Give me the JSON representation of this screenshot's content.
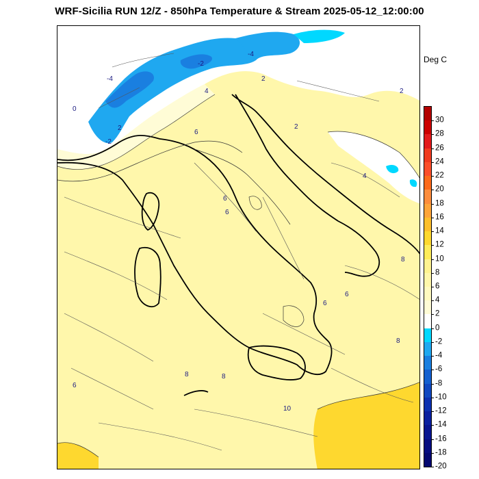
{
  "title": "WRF-Sicilia RUN 12/Z - 850hPa Temperature & Stream 2025-05-12_12:00:00",
  "unit_label": "Deg C",
  "colorbar": {
    "min": -20,
    "max": 32,
    "tick_labels": [
      "30",
      "28",
      "26",
      "24",
      "22",
      "20",
      "18",
      "16",
      "14",
      "12",
      "10",
      "8",
      "6",
      "4",
      "2",
      "0",
      "-2",
      "-4",
      "-6",
      "-8",
      "-10",
      "-12",
      "-14",
      "-16",
      "-18",
      "-20"
    ],
    "bins": [
      {
        "from": 30,
        "to": 32,
        "color": "#b30000"
      },
      {
        "from": 28,
        "to": 30,
        "color": "#cc0000"
      },
      {
        "from": 26,
        "to": 28,
        "color": "#e31a1c"
      },
      {
        "from": 24,
        "to": 26,
        "color": "#f03b20"
      },
      {
        "from": 22,
        "to": 24,
        "color": "#fc4e2a"
      },
      {
        "from": 20,
        "to": 22,
        "color": "#fd6a1a"
      },
      {
        "from": 18,
        "to": 20,
        "color": "#fd8d3c"
      },
      {
        "from": 16,
        "to": 18,
        "color": "#fea53a"
      },
      {
        "from": 14,
        "to": 16,
        "color": "#fdbf2d"
      },
      {
        "from": 12,
        "to": 14,
        "color": "#fed82f"
      },
      {
        "from": 10,
        "to": 12,
        "color": "#feec5a"
      },
      {
        "from": 8,
        "to": 10,
        "color": "#fff391"
      },
      {
        "from": 6,
        "to": 8,
        "color": "#fff7ab"
      },
      {
        "from": 4,
        "to": 6,
        "color": "#fffac0"
      },
      {
        "from": 2,
        "to": 4,
        "color": "#fffcd6"
      },
      {
        "from": 0,
        "to": 2,
        "color": "#ffffff"
      },
      {
        "from": -2,
        "to": 0,
        "color": "#00d8ff"
      },
      {
        "from": -4,
        "to": -2,
        "color": "#1fa8f0"
      },
      {
        "from": -6,
        "to": -4,
        "color": "#1a7fe0"
      },
      {
        "from": -8,
        "to": -6,
        "color": "#1460d0"
      },
      {
        "from": -10,
        "to": -8,
        "color": "#1048c0"
      },
      {
        "from": -12,
        "to": -10,
        "color": "#0c30b0"
      },
      {
        "from": -14,
        "to": -12,
        "color": "#0a20a0"
      },
      {
        "from": -16,
        "to": -14,
        "color": "#081590"
      },
      {
        "from": -18,
        "to": -16,
        "color": "#060d80"
      },
      {
        "from": -20,
        "to": -18,
        "color": "#040870"
      }
    ]
  },
  "map": {
    "background_color": "#fff7ab",
    "contour_labels": [
      "-4",
      "-2",
      "0",
      "2",
      "4",
      "6",
      "6",
      "-4",
      "-2",
      "2",
      "2",
      "2",
      "4",
      "6",
      "6",
      "8",
      "8",
      "8",
      "6",
      "8",
      "6",
      "10"
    ]
  }
}
